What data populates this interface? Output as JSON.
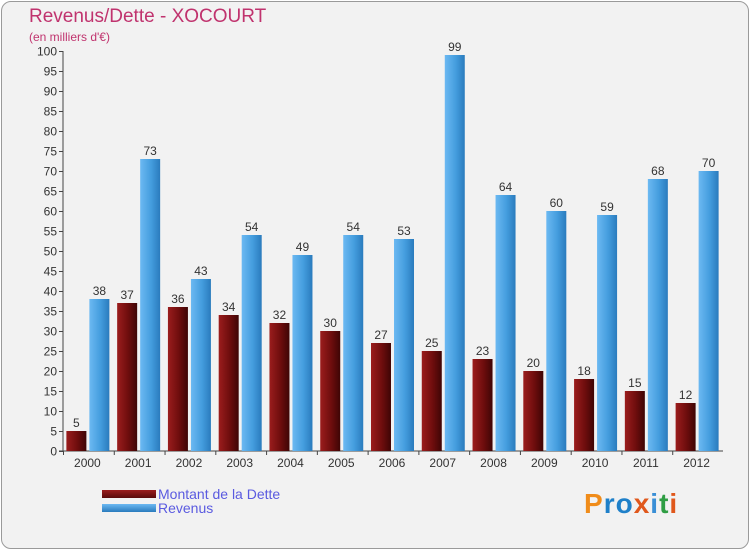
{
  "title": "Revenus/Dette - XOCOURT",
  "subtitle": "(en milliers d'€)",
  "legend": [
    {
      "label": "Montant de la Dette",
      "color": "#7a1212"
    },
    {
      "label": "Revenus",
      "color": "#4aa3e6"
    }
  ],
  "logo": "Proxiti",
  "colors": {
    "title": "#c0336e",
    "dette": "#7a1212",
    "revenus": "#4aa3e6",
    "legend_text": "#5a5ae0"
  },
  "chart_data": {
    "type": "bar",
    "title": "Revenus/Dette - XOCOURT",
    "ylabel": "(en milliers d'€)",
    "xlabel": "",
    "categories": [
      "2000",
      "2001",
      "2002",
      "2003",
      "2004",
      "2005",
      "2006",
      "2007",
      "2008",
      "2009",
      "2010",
      "2011",
      "2012"
    ],
    "series": [
      {
        "name": "Montant de la Dette",
        "values": [
          5,
          37,
          36,
          34,
          32,
          30,
          27,
          25,
          23,
          20,
          18,
          15,
          12
        ]
      },
      {
        "name": "Revenus",
        "values": [
          38,
          73,
          43,
          54,
          49,
          54,
          53,
          99,
          64,
          60,
          59,
          68,
          70
        ]
      }
    ],
    "ylim": [
      0,
      100
    ],
    "ytick_step": 5,
    "grid": false,
    "legend_position": "bottom-left"
  }
}
